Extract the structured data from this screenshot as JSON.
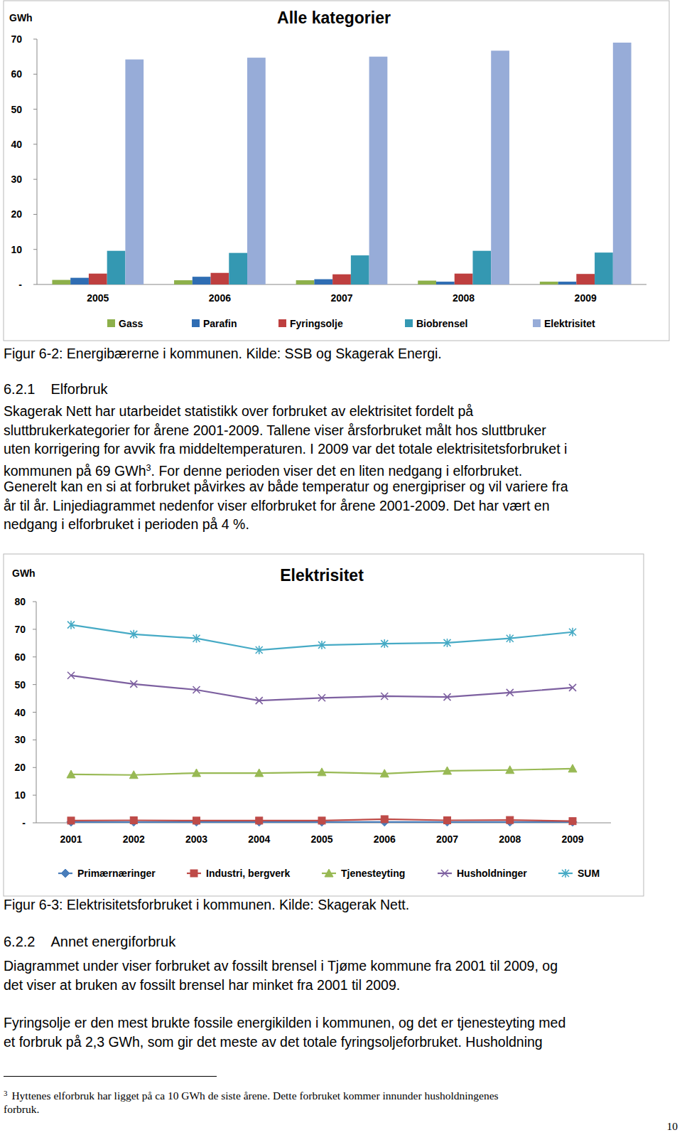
{
  "chart_data": [
    {
      "type": "bar",
      "title": "Alle kategorier",
      "y_label": "GWh",
      "categories": [
        "2005",
        "2006",
        "2007",
        "2008",
        "2009"
      ],
      "series": [
        {
          "name": "Gass",
          "color": "#8db04a",
          "values": [
            1.3,
            1.2,
            1.2,
            1.1,
            0.8
          ]
        },
        {
          "name": "Parafin",
          "color": "#2f6db3",
          "values": [
            1.9,
            2.2,
            1.5,
            0.8,
            0.8
          ]
        },
        {
          "name": "Fyringsolje",
          "color": "#be3f3f",
          "values": [
            3.1,
            3.3,
            2.9,
            3.1,
            3.0
          ]
        },
        {
          "name": "Biobrensel",
          "color": "#3498b2",
          "values": [
            9.6,
            9.0,
            8.3,
            9.6,
            9.1
          ]
        },
        {
          "name": "Elektrisitet",
          "color": "#97acd8",
          "values": [
            64.2,
            64.7,
            65.0,
            66.7,
            69.0
          ]
        }
      ],
      "ylim": [
        0,
        70
      ],
      "yticks": [
        {
          "value": 0,
          "label": "-"
        },
        10,
        20,
        30,
        40,
        50,
        60,
        70
      ],
      "grid": false,
      "legend": "bottom"
    },
    {
      "type": "line",
      "title": "Elektrisitet",
      "y_label": "GWh",
      "categories": [
        "2001",
        "2002",
        "2003",
        "2004",
        "2005",
        "2006",
        "2007",
        "2008",
        "2009"
      ],
      "series": [
        {
          "name": "Primærnæringer",
          "color": "#4a7ebb",
          "marker": "diamond",
          "values": [
            0.3,
            0.3,
            0.3,
            0.3,
            0.3,
            0.3,
            0.3,
            0.3,
            0.3
          ]
        },
        {
          "name": "Industri, bergverk",
          "color": "#be4b48",
          "marker": "square",
          "values": [
            0.8,
            0.9,
            0.8,
            0.8,
            0.8,
            1.3,
            0.9,
            1.0,
            0.6
          ]
        },
        {
          "name": "Tjenesteyting",
          "color": "#98b954",
          "marker": "triangle",
          "values": [
            17.5,
            17.3,
            18.0,
            18.0,
            18.3,
            17.8,
            18.8,
            19.1,
            19.6
          ]
        },
        {
          "name": "Husholdninger",
          "color": "#7d60a0",
          "marker": "x",
          "values": [
            53.3,
            50.2,
            48.1,
            44.2,
            45.2,
            45.8,
            45.5,
            47.1,
            48.9
          ]
        },
        {
          "name": "SUM",
          "color": "#46aac5",
          "marker": "asterisk",
          "values": [
            71.6,
            68.2,
            66.7,
            62.5,
            64.3,
            64.8,
            65.1,
            66.7,
            69.0
          ]
        }
      ],
      "ylim": [
        0,
        80
      ],
      "yticks": [
        {
          "value": 0,
          "label": "-"
        },
        10,
        20,
        30,
        40,
        50,
        60,
        70,
        80
      ],
      "grid": false,
      "legend": "bottom"
    }
  ],
  "document": {
    "caption_1": "Figur 6-2: Energibærerne i kommunen. Kilde: SSB og Skagerak Energi.",
    "section_1": {
      "number": "6.2.1",
      "title": "Elforbruk",
      "lines": [
        "Skagerak Nett har utarbeidet statistikk over forbruket av elektrisitet fordelt på",
        "sluttbrukerkategorier for årene 2001-2009. Tallene viser årsforbruket målt hos sluttbruker",
        "uten korrigering for avvik fra middeltemperaturen. I 2009 var det totale elektrisitetsforbruket i",
        {
          "text": "kommunen på 69 GWh",
          "sup": "3",
          "rest": ". For denne perioden viser det en liten nedgang i elforbruket."
        },
        "Generelt kan en si at forbruket påvirkes av både temperatur og energipriser og vil variere fra",
        "år til år. Linjediagrammet nedenfor viser elforbruket for årene 2001-2009. Det har vært en",
        "nedgang i elforbruket i perioden på 4 %."
      ]
    },
    "caption_2": "Figur 6-3: Elektrisitetsforbruket i kommunen. Kilde: Skagerak Nett.",
    "section_2": {
      "number": "6.2.2",
      "title": "Annet energiforbruk",
      "lines": [
        "Diagrammet under viser forbruket av fossilt brensel i Tjøme kommune fra 2001 til 2009, og",
        "det viser at bruken av fossilt brensel har minket fra 2001 til 2009.",
        "Fyringsolje er den mest brukte fossile energikilden i kommunen, og det er tjenesteyting med",
        "et forbruk på 2,3 GWh, som gir det meste av det totale fyringsoljeforbruket. Husholdning"
      ]
    },
    "footnote": {
      "mark": "3",
      "lines": [
        "Hyttenes elforbruk har ligget på ca 10 GWh de siste årene. Dette forbruket kommer innunder husholdningenes",
        "forbruk."
      ]
    },
    "page_number": "10"
  }
}
